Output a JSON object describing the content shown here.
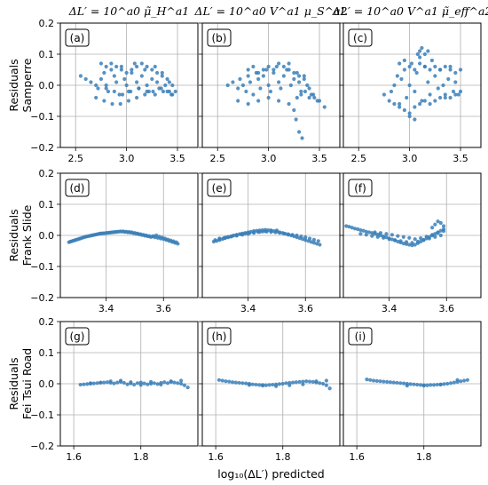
{
  "figure": {
    "col_titles": [
      "ΔL′ = 10^a0 μ̃_H^a1",
      "ΔL′ = 10^a0 V^a1 μ_S^a2",
      "ΔL′ = 10^a0 V^a1 μ̃_eff^a2"
    ],
    "row_labels": [
      [
        "Residuals",
        "Samperre"
      ],
      [
        "Residuals",
        "Frank Slide"
      ],
      [
        "Residuals",
        "Fei Tsui Road"
      ]
    ],
    "xlabel": "log₁₀(ΔL′) predicted",
    "colors": {
      "points": "#3a7fb8",
      "grid": "#b0b0b0",
      "axes": "#000000"
    }
  },
  "chart_data": [
    {
      "type": "scatter",
      "panel": "(a)",
      "row_label": "Samperre",
      "xlim": [
        2.35,
        3.7
      ],
      "ylim": [
        -0.2,
        0.2
      ],
      "xticks": [
        2.5,
        3.0,
        3.5
      ],
      "yticks": [
        -0.2,
        -0.1,
        0.0,
        0.1,
        0.2
      ],
      "grid": true,
      "x": [
        2.55,
        2.6,
        2.65,
        2.7,
        2.72,
        2.75,
        2.78,
        2.8,
        2.82,
        2.85,
        2.88,
        2.9,
        2.93,
        2.95,
        2.98,
        3.0,
        3.02,
        3.05,
        3.08,
        3.1,
        3.12,
        3.15,
        3.18,
        3.2,
        3.22,
        3.25,
        3.28,
        3.3,
        3.32,
        3.35,
        3.38,
        3.4,
        3.42,
        3.45,
        2.75,
        2.8,
        2.85,
        2.9,
        2.95,
        3.0,
        3.05,
        3.1,
        3.15,
        3.2,
        3.25,
        3.3,
        3.35,
        3.4,
        3.45,
        2.7,
        2.78,
        2.86,
        2.94,
        3.02,
        3.1,
        3.18,
        3.26,
        3.34,
        3.42,
        2.8,
        2.88,
        2.96,
        3.04,
        3.12,
        3.2,
        3.28,
        3.36,
        3.44,
        3.48
      ],
      "y": [
        0.03,
        0.02,
        0.01,
        0.0,
        -0.01,
        0.02,
        0.04,
        0.0,
        -0.02,
        0.05,
        0.03,
        0.01,
        -0.03,
        0.06,
        0.02,
        0.0,
        -0.02,
        0.04,
        0.07,
        0.01,
        -0.01,
        0.03,
        0.05,
        0.0,
        -0.02,
        0.02,
        0.06,
        0.01,
        -0.01,
        0.04,
        0.0,
        -0.02,
        0.01,
        -0.03,
        0.07,
        0.06,
        0.07,
        0.06,
        0.05,
        0.04,
        0.05,
        0.06,
        0.07,
        0.06,
        0.05,
        0.04,
        0.03,
        0.02,
        0.0,
        -0.04,
        -0.05,
        -0.06,
        -0.06,
        -0.05,
        -0.04,
        -0.03,
        -0.02,
        -0.01,
        -0.02,
        -0.01,
        -0.02,
        -0.03,
        -0.02,
        -0.01,
        -0.02,
        -0.03,
        -0.02,
        -0.03,
        -0.02
      ]
    },
    {
      "type": "scatter",
      "panel": "(b)",
      "row_label": "Samperre",
      "xlim": [
        2.35,
        3.7
      ],
      "ylim": [
        -0.2,
        0.2
      ],
      "xticks": [
        2.5,
        3.0,
        3.5
      ],
      "yticks": [
        -0.2,
        -0.1,
        0.0,
        0.1,
        0.2
      ],
      "grid": true,
      "x": [
        2.6,
        2.65,
        2.7,
        2.72,
        2.75,
        2.78,
        2.8,
        2.82,
        2.85,
        2.88,
        2.9,
        2.92,
        2.95,
        2.98,
        3.0,
        3.02,
        3.05,
        3.08,
        3.1,
        3.12,
        3.15,
        3.18,
        3.2,
        3.22,
        3.25,
        3.28,
        3.3,
        3.32,
        3.35,
        3.38,
        3.4,
        3.42,
        3.45,
        3.5,
        3.55,
        2.8,
        2.85,
        2.9,
        2.95,
        3.0,
        3.05,
        3.1,
        3.15,
        3.2,
        3.25,
        3.3,
        3.35,
        2.7,
        2.8,
        2.9,
        3.0,
        3.1,
        3.2,
        3.28,
        3.32,
        3.36,
        3.4,
        3.44,
        3.48,
        3.25,
        3.27,
        3.3,
        3.33
      ],
      "y": [
        0.0,
        0.01,
        -0.01,
        0.02,
        0.0,
        -0.02,
        0.03,
        0.01,
        -0.03,
        0.04,
        0.02,
        -0.01,
        0.03,
        0.05,
        0.0,
        -0.02,
        0.04,
        0.06,
        0.01,
        -0.01,
        0.03,
        0.05,
        0.07,
        0.0,
        0.02,
        0.04,
        0.01,
        -0.02,
        0.03,
        0.0,
        -0.01,
        -0.03,
        -0.04,
        -0.05,
        -0.07,
        0.05,
        0.06,
        0.04,
        0.05,
        0.06,
        0.05,
        0.07,
        0.06,
        0.05,
        0.04,
        0.03,
        0.02,
        -0.05,
        -0.06,
        -0.05,
        -0.04,
        -0.05,
        -0.06,
        -0.04,
        -0.03,
        -0.02,
        -0.04,
        -0.03,
        -0.05,
        -0.08,
        -0.11,
        -0.15,
        -0.17
      ]
    },
    {
      "type": "scatter",
      "panel": "(c)",
      "row_label": "Samperre",
      "xlim": [
        2.35,
        3.7
      ],
      "ylim": [
        -0.2,
        0.2
      ],
      "xticks": [
        2.5,
        3.0,
        3.5
      ],
      "yticks": [
        -0.2,
        -0.1,
        0.0,
        0.1,
        0.2
      ],
      "grid": true,
      "x": [
        2.75,
        2.8,
        2.82,
        2.85,
        2.88,
        2.9,
        2.92,
        2.95,
        2.97,
        3.0,
        3.02,
        3.05,
        3.07,
        3.1,
        3.12,
        3.15,
        3.18,
        3.2,
        3.22,
        3.25,
        3.28,
        3.3,
        3.33,
        3.35,
        3.38,
        3.4,
        3.43,
        3.45,
        3.48,
        3.5,
        2.9,
        2.95,
        3.0,
        3.05,
        3.1,
        3.15,
        3.2,
        3.25,
        3.3,
        3.35,
        3.4,
        3.45,
        3.5,
        2.85,
        2.9,
        2.95,
        3.0,
        3.05,
        3.1,
        3.15,
        3.2,
        3.25,
        3.3,
        3.35,
        3.4,
        3.45,
        3.0,
        3.05,
        3.08,
        3.1,
        3.12,
        3.15,
        3.18
      ],
      "y": [
        -0.03,
        -0.05,
        -0.02,
        0.0,
        0.03,
        -0.06,
        0.02,
        0.05,
        -0.04,
        0.0,
        0.07,
        -0.02,
        0.04,
        0.09,
        -0.05,
        0.06,
        0.01,
        -0.03,
        0.08,
        0.03,
        -0.01,
        0.05,
        0.0,
        -0.04,
        0.02,
        0.06,
        -0.02,
        0.01,
        -0.03,
        -0.02,
        0.07,
        0.08,
        0.06,
        0.05,
        0.07,
        0.06,
        0.05,
        0.06,
        0.05,
        0.06,
        0.05,
        0.04,
        0.05,
        -0.06,
        -0.07,
        -0.08,
        -0.09,
        -0.07,
        -0.06,
        -0.05,
        -0.06,
        -0.05,
        -0.04,
        -0.03,
        -0.04,
        -0.03,
        -0.1,
        -0.11,
        0.1,
        0.11,
        0.12,
        0.1,
        0.11
      ]
    },
    {
      "type": "scatter",
      "panel": "(d)",
      "row_label": "Frank Slide",
      "xlim": [
        3.24,
        3.72
      ],
      "ylim": [
        -0.2,
        0.2
      ],
      "xticks": [
        3.4,
        3.6
      ],
      "yticks": [
        -0.2,
        -0.1,
        0.0,
        0.1,
        0.2
      ],
      "grid": true,
      "x": [
        3.27,
        3.28,
        3.29,
        3.3,
        3.31,
        3.32,
        3.33,
        3.34,
        3.35,
        3.36,
        3.37,
        3.38,
        3.39,
        3.4,
        3.41,
        3.42,
        3.43,
        3.44,
        3.45,
        3.46,
        3.47,
        3.48,
        3.49,
        3.5,
        3.51,
        3.52,
        3.53,
        3.54,
        3.55,
        3.56,
        3.57,
        3.58,
        3.59,
        3.6,
        3.61,
        3.62,
        3.63,
        3.64,
        3.65,
        3.275,
        3.285,
        3.295,
        3.305,
        3.315,
        3.325,
        3.335,
        3.345,
        3.355,
        3.365,
        3.375,
        3.385,
        3.395,
        3.405,
        3.415,
        3.425,
        3.435,
        3.445,
        3.455,
        3.465,
        3.475,
        3.485,
        3.495,
        3.505,
        3.515,
        3.525,
        3.535,
        3.545,
        3.555,
        3.565,
        3.575,
        3.585,
        3.595,
        3.605,
        3.615,
        3.625,
        3.635,
        3.645
      ],
      "y": [
        -0.022,
        -0.019,
        -0.016,
        -0.013,
        -0.01,
        -0.007,
        -0.004,
        -0.002,
        0.0,
        0.002,
        0.004,
        0.006,
        0.007,
        0.008,
        0.009,
        0.01,
        0.011,
        0.012,
        0.013,
        0.013,
        0.012,
        0.011,
        0.01,
        0.008,
        0.006,
        0.004,
        0.002,
        0.0,
        -0.002,
        -0.004,
        -0.006,
        -0.008,
        -0.01,
        -0.012,
        -0.015,
        -0.018,
        -0.021,
        -0.024,
        -0.027,
        -0.02,
        -0.017,
        -0.014,
        -0.011,
        -0.008,
        -0.005,
        -0.003,
        -0.001,
        0.001,
        0.003,
        0.005,
        0.006,
        0.007,
        0.008,
        0.009,
        0.01,
        0.011,
        0.012,
        0.012,
        0.011,
        0.01,
        0.009,
        0.007,
        0.005,
        0.003,
        0.001,
        -0.001,
        -0.003,
        -0.005,
        -0.002,
        0.0,
        -0.004,
        -0.007,
        -0.01,
        -0.013,
        -0.016,
        -0.019,
        -0.022
      ]
    },
    {
      "type": "scatter",
      "panel": "(e)",
      "row_label": "Frank Slide",
      "xlim": [
        3.24,
        3.72
      ],
      "ylim": [
        -0.2,
        0.2
      ],
      "xticks": [
        3.4,
        3.6
      ],
      "yticks": [
        -0.2,
        -0.1,
        0.0,
        0.1,
        0.2
      ],
      "grid": true,
      "x": [
        3.28,
        3.29,
        3.3,
        3.31,
        3.32,
        3.33,
        3.34,
        3.35,
        3.36,
        3.37,
        3.38,
        3.39,
        3.4,
        3.41,
        3.42,
        3.43,
        3.44,
        3.45,
        3.46,
        3.47,
        3.48,
        3.49,
        3.5,
        3.51,
        3.52,
        3.53,
        3.54,
        3.55,
        3.56,
        3.57,
        3.58,
        3.59,
        3.6,
        3.61,
        3.62,
        3.63,
        3.64,
        3.65,
        3.285,
        3.3,
        3.315,
        3.33,
        3.345,
        3.36,
        3.375,
        3.39,
        3.405,
        3.42,
        3.435,
        3.45,
        3.465,
        3.48,
        3.495,
        3.51,
        3.525,
        3.54,
        3.555,
        3.57,
        3.585,
        3.6,
        3.615,
        3.63,
        3.645,
        3.3,
        3.32,
        3.34,
        3.36,
        3.38,
        3.4,
        3.42,
        3.44,
        3.46,
        3.48,
        3.5
      ],
      "y": [
        -0.02,
        -0.018,
        -0.015,
        -0.012,
        -0.009,
        -0.006,
        -0.003,
        0.0,
        0.002,
        0.004,
        0.006,
        0.008,
        0.01,
        0.012,
        0.014,
        0.015,
        0.016,
        0.017,
        0.018,
        0.017,
        0.016,
        0.014,
        0.012,
        0.01,
        0.008,
        0.005,
        0.002,
        0.0,
        -0.003,
        -0.006,
        -0.009,
        -0.012,
        -0.015,
        -0.018,
        -0.021,
        -0.024,
        -0.027,
        -0.03,
        -0.015,
        -0.012,
        -0.009,
        -0.005,
        -0.002,
        0.001,
        0.004,
        0.006,
        0.008,
        0.01,
        0.011,
        0.012,
        0.012,
        0.011,
        0.01,
        0.008,
        0.006,
        0.004,
        0.002,
        0.0,
        -0.003,
        -0.006,
        -0.01,
        -0.014,
        -0.018,
        -0.01,
        -0.007,
        -0.004,
        -0.001,
        0.002,
        0.005,
        0.008,
        0.011,
        0.013,
        0.015,
        0.016
      ]
    },
    {
      "type": "scatter",
      "panel": "(f)",
      "row_label": "Frank Slide",
      "xlim": [
        3.24,
        3.72
      ],
      "ylim": [
        -0.2,
        0.2
      ],
      "xticks": [
        3.4,
        3.6
      ],
      "yticks": [
        -0.2,
        -0.1,
        0.0,
        0.1,
        0.2
      ],
      "grid": true,
      "x": [
        3.25,
        3.26,
        3.27,
        3.28,
        3.29,
        3.3,
        3.31,
        3.32,
        3.33,
        3.34,
        3.35,
        3.36,
        3.37,
        3.38,
        3.39,
        3.4,
        3.41,
        3.42,
        3.43,
        3.44,
        3.45,
        3.46,
        3.47,
        3.48,
        3.49,
        3.5,
        3.51,
        3.52,
        3.53,
        3.54,
        3.55,
        3.56,
        3.57,
        3.58,
        3.59,
        3.3,
        3.32,
        3.34,
        3.36,
        3.38,
        3.4,
        3.42,
        3.44,
        3.46,
        3.48,
        3.5,
        3.52,
        3.54,
        3.56,
        3.58,
        3.35,
        3.37,
        3.39,
        3.41,
        3.43,
        3.45,
        3.47,
        3.49,
        3.51,
        3.53,
        3.55,
        3.57,
        3.59,
        3.55,
        3.56,
        3.57,
        3.58,
        3.59
      ],
      "y": [
        0.03,
        0.028,
        0.025,
        0.022,
        0.02,
        0.017,
        0.015,
        0.012,
        0.01,
        0.008,
        0.005,
        0.003,
        0.0,
        -0.003,
        -0.006,
        -0.01,
        -0.013,
        -0.016,
        -0.02,
        -0.023,
        -0.026,
        -0.028,
        -0.03,
        -0.032,
        -0.03,
        -0.025,
        -0.02,
        -0.015,
        -0.01,
        -0.005,
        0.0,
        0.005,
        0.01,
        0.015,
        0.02,
        0.005,
        0.002,
        -0.002,
        -0.005,
        -0.008,
        -0.012,
        -0.015,
        -0.018,
        -0.021,
        -0.024,
        -0.02,
        -0.015,
        -0.01,
        -0.005,
        0.0,
        0.01,
        0.008,
        0.005,
        0.002,
        -0.002,
        -0.005,
        -0.008,
        -0.012,
        -0.009,
        -0.004,
        0.002,
        0.008,
        0.014,
        0.025,
        0.035,
        0.045,
        0.04,
        0.03
      ]
    },
    {
      "type": "scatter",
      "panel": "(g)",
      "row_label": "Fei Tsui Road",
      "xlim": [
        1.56,
        1.97
      ],
      "ylim": [
        -0.2,
        0.2
      ],
      "xticks": [
        1.6,
        1.8
      ],
      "yticks": [
        -0.2,
        -0.1,
        0.0,
        0.1,
        0.2
      ],
      "grid": true,
      "x": [
        1.62,
        1.63,
        1.64,
        1.65,
        1.66,
        1.67,
        1.68,
        1.69,
        1.7,
        1.71,
        1.72,
        1.73,
        1.74,
        1.75,
        1.76,
        1.77,
        1.78,
        1.79,
        1.8,
        1.81,
        1.82,
        1.83,
        1.84,
        1.85,
        1.86,
        1.87,
        1.88,
        1.89,
        1.9,
        1.91,
        1.92,
        1.93,
        1.94,
        1.65,
        1.68,
        1.71,
        1.74,
        1.77,
        1.8,
        1.83,
        1.86,
        1.89,
        1.92
      ],
      "y": [
        -0.003,
        -0.002,
        -0.001,
        0.0,
        0.001,
        0.002,
        0.003,
        0.004,
        0.005,
        0.003,
        0.001,
        0.004,
        0.006,
        0.003,
        -0.002,
        0.001,
        -0.003,
        0.002,
        0.004,
        0.001,
        -0.002,
        0.0,
        0.002,
        -0.001,
        0.003,
        0.005,
        0.002,
        0.006,
        0.004,
        0.002,
        0.0,
        -0.005,
        -0.012,
        0.002,
        0.004,
        0.008,
        0.01,
        0.005,
        -0.004,
        0.006,
        -0.003,
        0.008,
        0.01
      ]
    },
    {
      "type": "scatter",
      "panel": "(h)",
      "row_label": "Fei Tsui Road",
      "xlim": [
        1.56,
        1.97
      ],
      "ylim": [
        -0.2,
        0.2
      ],
      "xticks": [
        1.6,
        1.8
      ],
      "yticks": [
        -0.2,
        -0.1,
        0.0,
        0.1,
        0.2
      ],
      "grid": true,
      "x": [
        1.61,
        1.62,
        1.63,
        1.64,
        1.65,
        1.66,
        1.67,
        1.68,
        1.69,
        1.7,
        1.71,
        1.72,
        1.73,
        1.74,
        1.75,
        1.76,
        1.77,
        1.78,
        1.79,
        1.8,
        1.81,
        1.82,
        1.83,
        1.84,
        1.85,
        1.86,
        1.87,
        1.88,
        1.89,
        1.9,
        1.91,
        1.92,
        1.93,
        1.94,
        1.7,
        1.74,
        1.78,
        1.82,
        1.86,
        1.9,
        1.93
      ],
      "y": [
        0.012,
        0.01,
        0.008,
        0.007,
        0.005,
        0.004,
        0.003,
        0.002,
        0.001,
        0.0,
        -0.002,
        -0.003,
        -0.004,
        -0.004,
        -0.005,
        -0.004,
        -0.003,
        -0.002,
        -0.001,
        0.0,
        0.002,
        0.003,
        0.004,
        0.005,
        0.006,
        0.007,
        0.008,
        0.007,
        0.006,
        0.004,
        0.002,
        0.0,
        -0.005,
        -0.015,
        -0.004,
        -0.006,
        -0.008,
        -0.005,
        -0.002,
        0.008,
        0.01
      ]
    },
    {
      "type": "scatter",
      "panel": "(i)",
      "row_label": "Fei Tsui Road",
      "xlim": [
        1.56,
        1.97
      ],
      "ylim": [
        -0.2,
        0.2
      ],
      "xticks": [
        1.6,
        1.8
      ],
      "yticks": [
        -0.2,
        -0.1,
        0.0,
        0.1,
        0.2
      ],
      "grid": true,
      "x": [
        1.63,
        1.64,
        1.65,
        1.66,
        1.67,
        1.68,
        1.69,
        1.7,
        1.71,
        1.72,
        1.73,
        1.74,
        1.75,
        1.76,
        1.77,
        1.78,
        1.79,
        1.8,
        1.81,
        1.82,
        1.83,
        1.84,
        1.85,
        1.86,
        1.87,
        1.88,
        1.89,
        1.9,
        1.91,
        1.92,
        1.93,
        1.75,
        1.8,
        1.85,
        1.9
      ],
      "y": [
        0.014,
        0.012,
        0.01,
        0.009,
        0.008,
        0.007,
        0.006,
        0.005,
        0.004,
        0.003,
        0.002,
        0.001,
        0.0,
        -0.001,
        -0.002,
        -0.003,
        -0.004,
        -0.005,
        -0.005,
        -0.004,
        -0.004,
        -0.003,
        -0.002,
        -0.001,
        0.0,
        0.002,
        0.004,
        0.006,
        0.008,
        0.01,
        0.012,
        -0.006,
        -0.006,
        -0.003,
        0.012
      ]
    }
  ]
}
